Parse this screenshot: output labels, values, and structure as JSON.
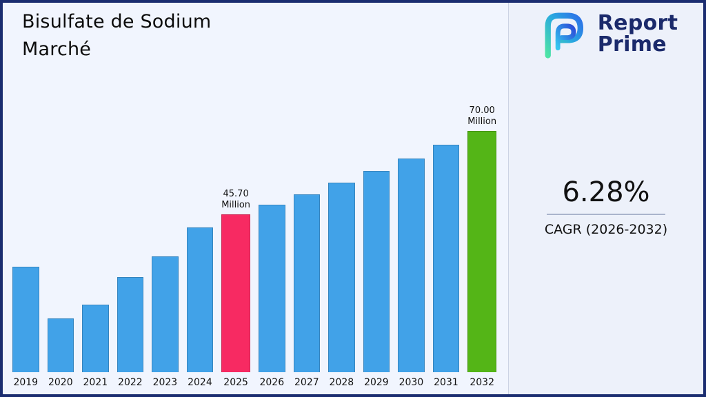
{
  "title": {
    "line1": "Bisulfate de Sodium",
    "line2": "Marché"
  },
  "logo": {
    "line1": "Report",
    "line2": "Prime"
  },
  "stats": {
    "cagr_value": "6.28%",
    "cagr_label": "CAGR (2026-2032)"
  },
  "colors": {
    "bar_blue": "#41a2e8",
    "bar_pink": "#f72a62",
    "bar_green": "#54b517",
    "navy": "#1b2a6b",
    "background": "#f1f5fe"
  },
  "chart_data": {
    "type": "bar",
    "title": "Bisulfate de Sodium Marché",
    "unit": "Million",
    "categories": [
      "2019",
      "2020",
      "2021",
      "2022",
      "2023",
      "2024",
      "2025",
      "2026",
      "2027",
      "2028",
      "2029",
      "2030",
      "2031",
      "2032"
    ],
    "values": [
      30.5,
      15.5,
      19.5,
      27.5,
      33.5,
      42.0,
      45.7,
      48.6,
      51.6,
      54.9,
      58.3,
      62.0,
      65.9,
      70.0
    ],
    "ylim": [
      0,
      72
    ],
    "grid": false,
    "legend": "none",
    "annotations": [
      {
        "index": 6,
        "year": "2025",
        "lines": [
          "45.70",
          "Million"
        ],
        "color_key": "bar_pink"
      },
      {
        "index": 13,
        "year": "2032",
        "lines": [
          "70.00",
          "Million"
        ],
        "color_key": "bar_green"
      }
    ]
  }
}
